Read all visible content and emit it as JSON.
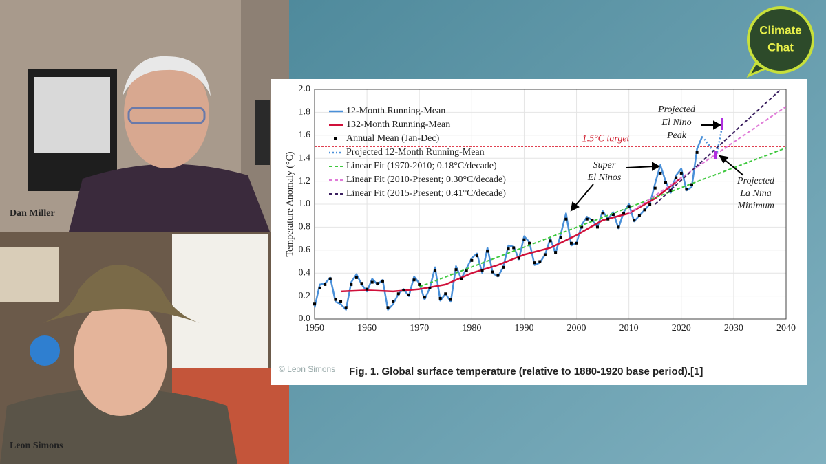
{
  "participants": [
    "Dan Miller",
    "Leon Simons"
  ],
  "logo": [
    "Climate",
    "Chat"
  ],
  "watermark": "© Leon Simons",
  "caption": "Fig. 1. Global surface temperature (relative to 1880-1920 base period).[1]",
  "chart_data": {
    "type": "line",
    "ylabel": "Temperature Anomaly (°C)",
    "xlim": [
      1950,
      2040
    ],
    "xticks": [
      1950,
      1960,
      1970,
      1980,
      1990,
      2000,
      2010,
      2020,
      2030,
      2040
    ],
    "ylim": [
      0,
      2
    ],
    "yticks": [
      {
        "value": 0,
        "label": "0.0"
      },
      0.2,
      0.4,
      0.6,
      0.8,
      {
        "value": 1,
        "label": "1.0"
      },
      1.2,
      1.4,
      1.6,
      1.8,
      {
        "value": 2,
        "label": "2.0"
      }
    ],
    "grid": true,
    "target": 1.5,
    "target_label": "1.5°C target",
    "annotations": [
      [
        "Projected",
        "El Nino",
        "Peak"
      ],
      [
        "Super",
        "El Ninos"
      ],
      [
        "Projected",
        "La Nina",
        "Minimum"
      ]
    ],
    "series": [
      {
        "name": "12-Month Running-Mean",
        "color": "#4a90d9",
        "style": "line",
        "x": [
          1950,
          1951,
          1952,
          1953,
          1954,
          1955,
          1956,
          1957,
          1958,
          1959,
          1960,
          1961,
          1962,
          1963,
          1964,
          1965,
          1966,
          1967,
          1968,
          1969,
          1970,
          1971,
          1972,
          1973,
          1974,
          1975,
          1976,
          1977,
          1978,
          1979,
          1980,
          1981,
          1982,
          1983,
          1984,
          1985,
          1986,
          1987,
          1988,
          1989,
          1990,
          1991,
          1992,
          1993,
          1994,
          1995,
          1996,
          1997,
          1998,
          1999,
          2000,
          2001,
          2002,
          2003,
          2004,
          2005,
          2006,
          2007,
          2008,
          2009,
          2010,
          2011,
          2012,
          2013,
          2014,
          2015,
          2016,
          2017,
          2018,
          2019,
          2020,
          2021,
          2022,
          2023,
          2024
        ],
        "values": [
          0.1,
          0.3,
          0.31,
          0.36,
          0.15,
          0.13,
          0.08,
          0.32,
          0.39,
          0.3,
          0.24,
          0.35,
          0.3,
          0.34,
          0.08,
          0.13,
          0.22,
          0.26,
          0.2,
          0.37,
          0.31,
          0.17,
          0.27,
          0.45,
          0.16,
          0.22,
          0.15,
          0.46,
          0.35,
          0.44,
          0.53,
          0.57,
          0.4,
          0.62,
          0.4,
          0.37,
          0.45,
          0.64,
          0.63,
          0.52,
          0.72,
          0.67,
          0.47,
          0.49,
          0.56,
          0.7,
          0.57,
          0.74,
          0.92,
          0.64,
          0.66,
          0.82,
          0.89,
          0.86,
          0.8,
          0.94,
          0.87,
          0.93,
          0.79,
          0.93,
          1.0,
          0.85,
          0.9,
          0.95,
          1.0,
          1.18,
          1.34,
          1.2,
          1.1,
          1.25,
          1.31,
          1.12,
          1.15,
          1.48,
          1.59
        ]
      },
      {
        "name": "132-Month Running-Mean",
        "color": "#d0103a",
        "style": "line",
        "x": [
          1955,
          1960,
          1965,
          1970,
          1975,
          1980,
          1985,
          1990,
          1995,
          2000,
          2005,
          2010,
          2015,
          2020
        ],
        "values": [
          0.24,
          0.25,
          0.24,
          0.26,
          0.3,
          0.4,
          0.47,
          0.56,
          0.62,
          0.73,
          0.86,
          0.92,
          1.05,
          1.23
        ]
      },
      {
        "name": "Annual Mean (Jan-Dec)",
        "color": "#000000",
        "style": "points",
        "x": [
          1950,
          1951,
          1952,
          1953,
          1954,
          1955,
          1956,
          1957,
          1958,
          1959,
          1960,
          1961,
          1962,
          1963,
          1964,
          1965,
          1966,
          1967,
          1968,
          1969,
          1970,
          1971,
          1972,
          1973,
          1974,
          1975,
          1976,
          1977,
          1978,
          1979,
          1980,
          1981,
          1982,
          1983,
          1984,
          1985,
          1986,
          1987,
          1988,
          1989,
          1990,
          1991,
          1992,
          1993,
          1994,
          1995,
          1996,
          1997,
          1998,
          1999,
          2000,
          2001,
          2002,
          2003,
          2004,
          2005,
          2006,
          2007,
          2008,
          2009,
          2010,
          2011,
          2012,
          2013,
          2014,
          2015,
          2016,
          2017,
          2018,
          2019,
          2020,
          2021,
          2022,
          2023
        ],
        "values": [
          0.13,
          0.27,
          0.3,
          0.35,
          0.17,
          0.15,
          0.1,
          0.3,
          0.36,
          0.31,
          0.26,
          0.32,
          0.31,
          0.33,
          0.1,
          0.15,
          0.22,
          0.25,
          0.21,
          0.34,
          0.3,
          0.19,
          0.27,
          0.42,
          0.18,
          0.22,
          0.17,
          0.43,
          0.35,
          0.42,
          0.51,
          0.55,
          0.42,
          0.59,
          0.41,
          0.38,
          0.45,
          0.61,
          0.62,
          0.53,
          0.69,
          0.66,
          0.49,
          0.5,
          0.56,
          0.68,
          0.58,
          0.71,
          0.87,
          0.66,
          0.66,
          0.8,
          0.87,
          0.86,
          0.8,
          0.92,
          0.87,
          0.91,
          0.8,
          0.92,
          0.98,
          0.86,
          0.9,
          0.95,
          1.0,
          1.14,
          1.27,
          1.19,
          1.12,
          1.23,
          1.27,
          1.13,
          1.17,
          1.45
        ]
      },
      {
        "name": "Projected 12-Month Running-Mean",
        "color": "#4a90d9",
        "style": "dotted",
        "x": [
          2024,
          2025.5,
          2026.7,
          2028
        ],
        "values": [
          1.59,
          1.5,
          1.42,
          1.72
        ]
      },
      {
        "name": "Linear Fit (1970-2010; 0.18°C/decade)",
        "color": "#3ec83e",
        "style": "dashed",
        "x": [
          1970,
          2040
        ],
        "values": [
          0.28,
          1.49
        ]
      },
      {
        "name": "Linear Fit (2010-Present; 0.30°C/decade)",
        "color": "#e07ad8",
        "style": "dashed",
        "x": [
          2010,
          2040
        ],
        "values": [
          0.92,
          1.85
        ]
      },
      {
        "name": "Linear Fit (2015-Present; 0.41°C/decade)",
        "color": "#3b2060",
        "style": "dashed",
        "x": [
          2015,
          2039
        ],
        "values": [
          1.0,
          2.0
        ]
      }
    ]
  }
}
